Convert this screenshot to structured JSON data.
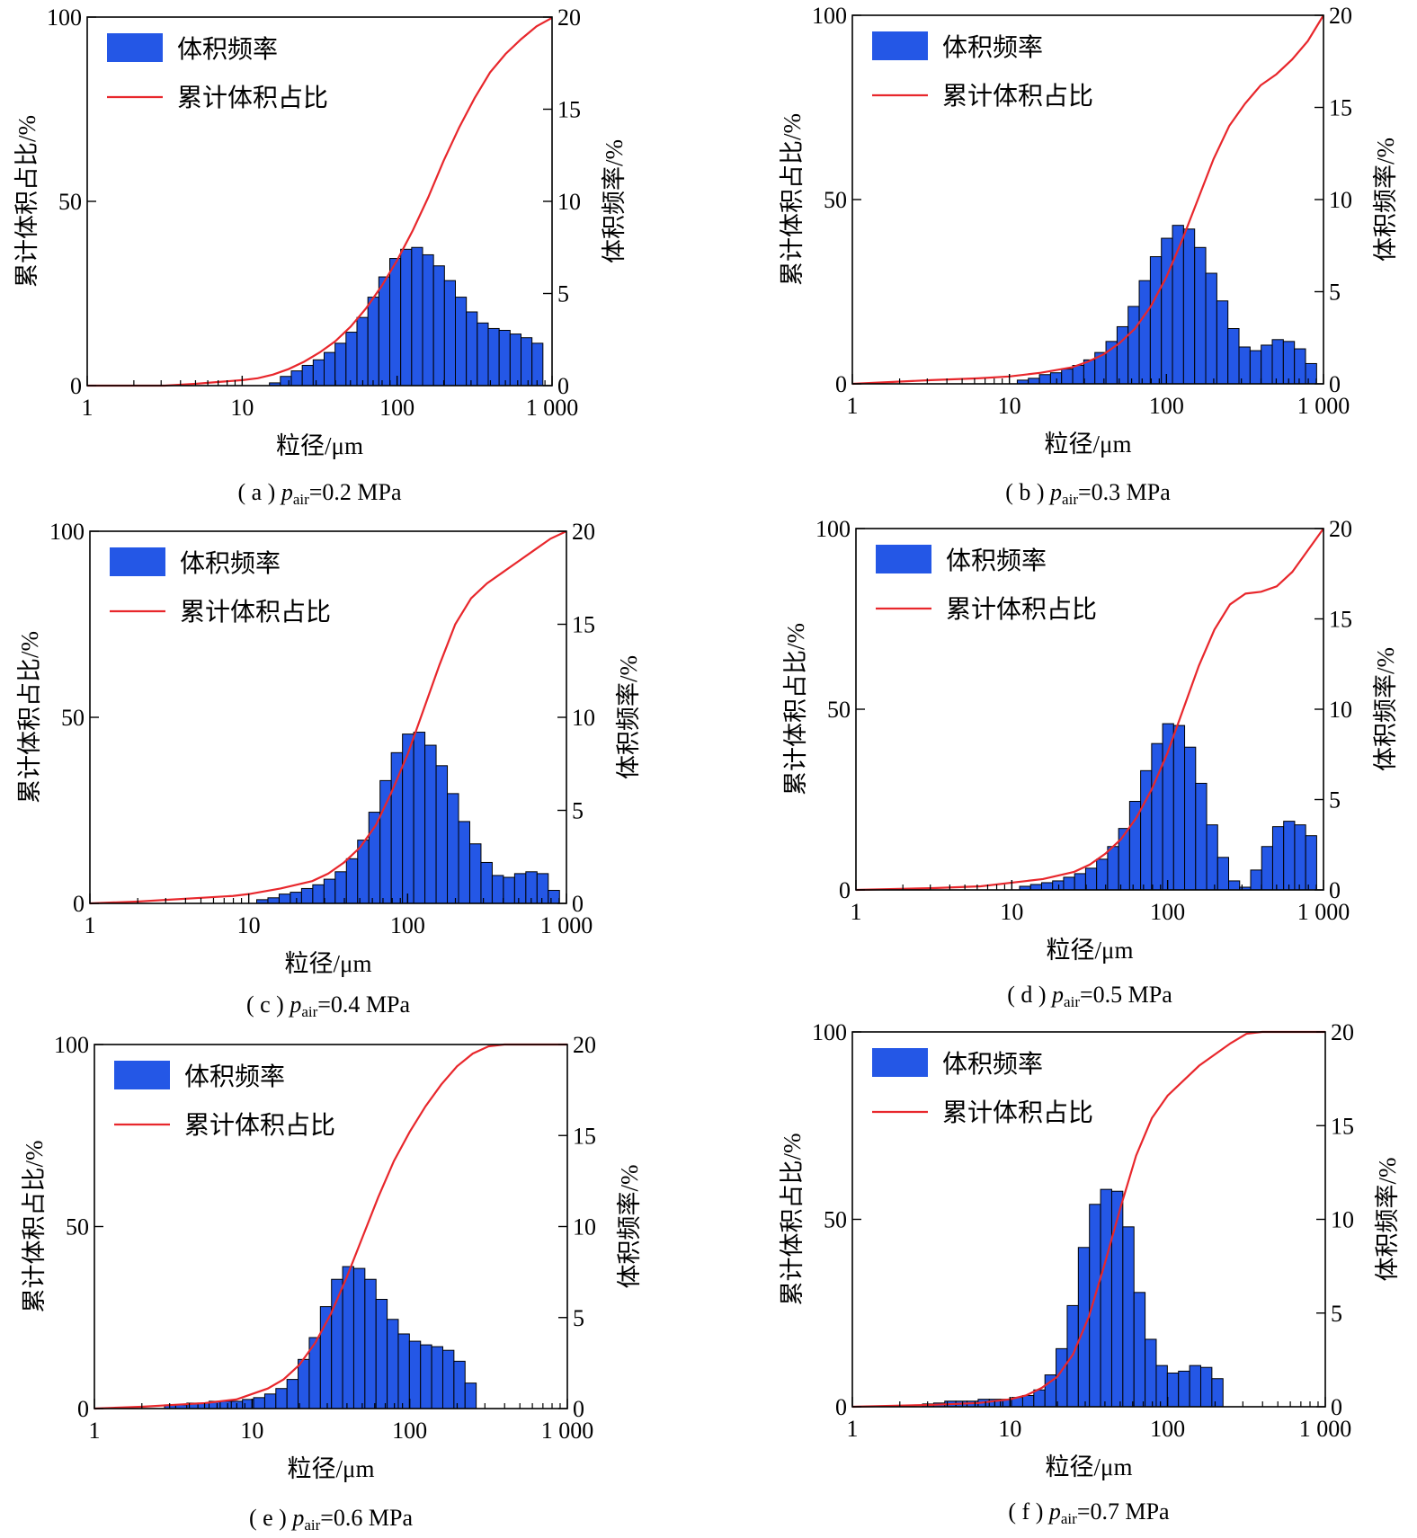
{
  "colors": {
    "bar_fill": "#2457e6",
    "bar_stroke": "#000000",
    "line": "#e8272c",
    "axis": "#000000"
  },
  "x_ticks": [
    "1",
    "10",
    "100",
    "1 000"
  ],
  "y_left_ticks": [
    "0",
    "50",
    "100"
  ],
  "y_right_ticks": [
    "0",
    "5",
    "10",
    "15",
    "20"
  ],
  "legend": {
    "bar_label": "体积频率",
    "line_label": "累计体积占比"
  },
  "axis_labels": {
    "x": "粒径/μm",
    "y_left": "累计体积占比/%",
    "y_right": "体积频率/%"
  },
  "chart_data": [
    {
      "type": "bar+line",
      "caption": {
        "letter": "( a )",
        "p": "p",
        "sub": "air",
        "value": "=0.2 MPa"
      },
      "xscale": "log",
      "xlim": [
        1,
        1000
      ],
      "ylim_left": [
        0,
        100
      ],
      "ylim_right": [
        0,
        20
      ],
      "bin_log_edges": {
        "start": 1.176,
        "width": 0.0706
      },
      "bars_right_pct": [
        0.15,
        0.5,
        0.8,
        1.1,
        1.4,
        1.8,
        2.3,
        2.9,
        3.7,
        4.8,
        5.9,
        6.9,
        7.4,
        7.5,
        7.1,
        6.5,
        5.7,
        4.8,
        4.0,
        3.4,
        3.1,
        3.0,
        2.8,
        2.6,
        2.3,
        1.9,
        1.1
      ],
      "cumulative": {
        "log_x": [
          0,
          0.3,
          0.5,
          0.7,
          0.85,
          1.0,
          1.1,
          1.2,
          1.3,
          1.4,
          1.5,
          1.6,
          1.7,
          1.8,
          1.9,
          2.0,
          2.1,
          2.2,
          2.3,
          2.4,
          2.5,
          2.6,
          2.7,
          2.8,
          2.9,
          3.0
        ],
        "pct": [
          0,
          0,
          0,
          0.5,
          1,
          1.5,
          2,
          3,
          4.5,
          6.5,
          9,
          12,
          16,
          21,
          27,
          34,
          42,
          51,
          61,
          70,
          78,
          85,
          90,
          94,
          97.5,
          99.8
        ]
      }
    },
    {
      "type": "bar+line",
      "caption": {
        "letter": "( b )",
        "p": "p",
        "sub": "air",
        "value": "=0.3 MPa"
      },
      "xscale": "log",
      "xlim": [
        1,
        1000
      ],
      "ylim_left": [
        0,
        100
      ],
      "ylim_right": [
        0,
        20
      ],
      "bin_log_edges": {
        "start": 1.05,
        "width": 0.0706
      },
      "bars_right_pct": [
        0.2,
        0.3,
        0.5,
        0.6,
        0.8,
        1.0,
        1.3,
        1.7,
        2.3,
        3.1,
        4.2,
        5.6,
        6.9,
        7.9,
        8.6,
        8.4,
        7.4,
        6.0,
        4.5,
        3.0,
        2.0,
        1.8,
        2.1,
        2.4,
        2.3,
        1.9,
        1.1
      ],
      "cumulative": {
        "log_x": [
          0,
          0.5,
          0.8,
          1.0,
          1.2,
          1.4,
          1.5,
          1.6,
          1.7,
          1.8,
          1.9,
          2.0,
          2.1,
          2.2,
          2.3,
          2.4,
          2.5,
          2.6,
          2.7,
          2.8,
          2.9,
          3.0
        ],
        "pct": [
          0,
          1,
          1.5,
          2,
          3,
          4.5,
          6,
          8,
          11,
          15,
          21,
          29,
          39,
          50,
          61,
          70,
          76,
          81,
          84,
          88,
          93,
          100
        ]
      }
    },
    {
      "type": "bar+line",
      "caption": {
        "letter": "( c )",
        "p": "p",
        "sub": "air",
        "value": "=0.4 MPa"
      },
      "xscale": "log",
      "xlim": [
        1,
        1000
      ],
      "ylim_left": [
        0,
        100
      ],
      "ylim_right": [
        0,
        20
      ],
      "bin_log_edges": {
        "start": 1.05,
        "width": 0.0706
      },
      "bars_right_pct": [
        0.2,
        0.3,
        0.5,
        0.6,
        0.8,
        1.0,
        1.3,
        1.7,
        2.4,
        3.4,
        4.9,
        6.6,
        8.1,
        9.1,
        9.2,
        8.5,
        7.4,
        5.9,
        4.4,
        3.2,
        2.2,
        1.5,
        1.4,
        1.6,
        1.7,
        1.6,
        0.7
      ],
      "cumulative": {
        "log_x": [
          0,
          0.3,
          0.5,
          0.7,
          0.9,
          1.0,
          1.2,
          1.4,
          1.5,
          1.6,
          1.7,
          1.8,
          1.9,
          2.0,
          2.1,
          2.2,
          2.3,
          2.4,
          2.5,
          2.6,
          2.7,
          2.8,
          2.9,
          3.0
        ],
        "pct": [
          0,
          0.5,
          1,
          1.5,
          2,
          2.5,
          4,
          6,
          8,
          11,
          15,
          21,
          30,
          40,
          52,
          64,
          75,
          82,
          86,
          89,
          92,
          95,
          98,
          100
        ]
      }
    },
    {
      "type": "bar+line",
      "caption": {
        "letter": "( d )",
        "p": "p",
        "sub": "air",
        "value": "=0.5 MPa"
      },
      "xscale": "log",
      "xlim": [
        1,
        1000
      ],
      "ylim_left": [
        0,
        100
      ],
      "ylim_right": [
        0,
        20
      ],
      "bin_log_edges": {
        "start": 1.05,
        "width": 0.0706
      },
      "bars_right_pct": [
        0.2,
        0.3,
        0.4,
        0.5,
        0.7,
        0.9,
        1.2,
        1.7,
        2.4,
        3.4,
        4.9,
        6.6,
        8.1,
        9.2,
        9.1,
        7.9,
        5.9,
        3.6,
        1.8,
        0.5,
        0.15,
        1.1,
        2.4,
        3.5,
        3.8,
        3.6,
        3.0,
        1.8
      ],
      "cumulative": {
        "log_x": [
          0,
          0.5,
          0.8,
          1.0,
          1.2,
          1.4,
          1.5,
          1.6,
          1.7,
          1.8,
          1.9,
          2.0,
          2.1,
          2.2,
          2.3,
          2.4,
          2.5,
          2.6,
          2.7,
          2.8,
          2.9,
          3.0
        ],
        "pct": [
          0,
          0.5,
          1,
          2,
          3,
          5,
          7,
          10,
          14,
          20,
          28,
          38,
          50,
          62,
          72,
          79,
          82,
          82.5,
          84,
          88,
          94,
          100
        ]
      }
    },
    {
      "type": "bar+line",
      "caption": {
        "letter": "( e )",
        "p": "p",
        "sub": "air",
        "value": "=0.6 MPa"
      },
      "xscale": "log",
      "xlim": [
        1,
        1000
      ],
      "ylim_left": [
        0,
        100
      ],
      "ylim_right": [
        0,
        20
      ],
      "bin_log_edges": {
        "start": 0.445,
        "width": 0.0706
      },
      "bars_right_pct": [
        0.2,
        0.2,
        0.3,
        0.3,
        0.4,
        0.4,
        0.4,
        0.5,
        0.6,
        0.8,
        1.1,
        1.6,
        2.7,
        3.9,
        5.6,
        7.1,
        7.8,
        7.7,
        7.1,
        6.0,
        4.9,
        4.1,
        3.7,
        3.5,
        3.4,
        3.2,
        2.6,
        1.4
      ],
      "cumulative": {
        "log_x": [
          0,
          0.3,
          0.5,
          0.7,
          0.9,
          1.0,
          1.1,
          1.2,
          1.3,
          1.4,
          1.5,
          1.6,
          1.7,
          1.8,
          1.9,
          2.0,
          2.1,
          2.2,
          2.3,
          2.4,
          2.5,
          2.6,
          3.0
        ],
        "pct": [
          0,
          0.5,
          1,
          1.5,
          2.5,
          4,
          5.5,
          8,
          12,
          18,
          26,
          36,
          47,
          58,
          68,
          76,
          83,
          89,
          94,
          97.5,
          99.5,
          100,
          100
        ]
      }
    },
    {
      "type": "bar+line",
      "caption": {
        "letter": "( f )",
        "p": "p",
        "sub": "air",
        "value": "=0.7 MPa"
      },
      "xscale": "log",
      "xlim": [
        1,
        1000
      ],
      "ylim_left": [
        0,
        100
      ],
      "ylim_right": [
        0,
        20
      ],
      "bin_log_edges": {
        "start": 0.445,
        "width": 0.0706
      },
      "bars_right_pct": [
        0.15,
        0.2,
        0.3,
        0.3,
        0.3,
        0.4,
        0.4,
        0.4,
        0.5,
        0.6,
        0.9,
        1.7,
        3.1,
        5.4,
        8.5,
        10.8,
        11.6,
        11.5,
        9.6,
        6.1,
        3.6,
        2.2,
        1.8,
        1.9,
        2.2,
        2.1,
        1.5
      ],
      "cumulative": {
        "log_x": [
          0,
          0.5,
          0.8,
          1.0,
          1.1,
          1.2,
          1.3,
          1.4,
          1.5,
          1.6,
          1.7,
          1.8,
          1.9,
          2.0,
          2.1,
          2.2,
          2.3,
          2.4,
          2.5,
          2.6,
          3.0
        ],
        "pct": [
          0,
          0.5,
          1,
          2,
          3,
          5,
          8,
          14,
          24,
          38,
          53,
          67,
          77,
          83,
          87,
          91,
          94,
          97,
          99.5,
          100,
          100
        ]
      }
    }
  ]
}
